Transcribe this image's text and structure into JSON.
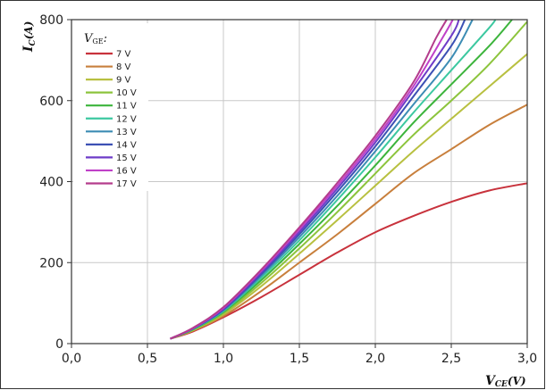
{
  "chart_data": {
    "type": "line",
    "xlabel": {
      "main": "V",
      "sub": "CE",
      "unit": "(V)"
    },
    "ylabel": {
      "main": "I",
      "sub": "C",
      "unit": "(A)"
    },
    "xlim": [
      0,
      3
    ],
    "ylim": [
      0,
      800
    ],
    "x_ticks": [
      "0,0",
      "0,5",
      "1,0",
      "1,5",
      "2,0",
      "2,5",
      "3,0"
    ],
    "x_tick_values": [
      0,
      0.5,
      1,
      1.5,
      2,
      2.5,
      3
    ],
    "y_ticks": [
      "0",
      "200",
      "400",
      "600",
      "800"
    ],
    "y_tick_values": [
      0,
      200,
      400,
      600,
      800
    ],
    "grid": true,
    "legend": {
      "title_main": "V",
      "title_sub": "GE",
      "title_suffix": ":",
      "placement": "top-left"
    },
    "series": [
      {
        "name": "7 V",
        "color": "#c8323c",
        "x": [
          0.65,
          0.8,
          1.0,
          1.25,
          1.5,
          1.75,
          2.0,
          2.25,
          2.5,
          2.75,
          3.0
        ],
        "y": [
          12,
          30,
          65,
          115,
          170,
          225,
          275,
          315,
          350,
          378,
          396
        ]
      },
      {
        "name": "8 V",
        "color": "#c87f3c",
        "x": [
          0.65,
          0.8,
          1.0,
          1.25,
          1.5,
          1.75,
          2.0,
          2.25,
          2.5,
          2.75,
          3.0
        ],
        "y": [
          12,
          32,
          68,
          130,
          200,
          270,
          345,
          420,
          480,
          540,
          590
        ]
      },
      {
        "name": "9 V",
        "color": "#b8c040",
        "x": [
          0.65,
          0.8,
          1.0,
          1.25,
          1.5,
          1.75,
          2.0,
          2.25,
          2.5,
          2.75,
          3.0
        ],
        "y": [
          12,
          33,
          72,
          142,
          222,
          305,
          390,
          475,
          555,
          635,
          715
        ]
      },
      {
        "name": "10 V",
        "color": "#8cc43c",
        "x": [
          0.65,
          0.8,
          1.0,
          1.25,
          1.5,
          1.75,
          2.0,
          2.25,
          2.5,
          2.75,
          3.0
        ],
        "y": [
          12,
          34,
          75,
          150,
          235,
          325,
          420,
          515,
          600,
          690,
          795
        ]
      },
      {
        "name": "11 V",
        "color": "#3cb43c",
        "x": [
          0.65,
          0.8,
          1.0,
          1.25,
          1.5,
          1.75,
          2.0,
          2.25,
          2.5,
          2.75,
          2.9
        ],
        "y": [
          12,
          35,
          78,
          157,
          246,
          340,
          440,
          545,
          640,
          735,
          800
        ]
      },
      {
        "name": "12 V",
        "color": "#3cc8a0",
        "x": [
          0.65,
          0.8,
          1.0,
          1.25,
          1.5,
          1.75,
          2.0,
          2.25,
          2.5,
          2.75,
          2.79
        ],
        "y": [
          12,
          36,
          80,
          163,
          255,
          355,
          460,
          570,
          675,
          780,
          800
        ]
      },
      {
        "name": "13 V",
        "color": "#3c8cb4",
        "x": [
          0.65,
          0.8,
          1.0,
          1.25,
          1.5,
          1.75,
          2.0,
          2.25,
          2.5,
          2.64
        ],
        "y": [
          12,
          37,
          82,
          168,
          263,
          365,
          475,
          590,
          705,
          800
        ]
      },
      {
        "name": "14 V",
        "color": "#3c50b4",
        "x": [
          0.65,
          0.8,
          1.0,
          1.25,
          1.5,
          1.75,
          2.0,
          2.25,
          2.5,
          2.59
        ],
        "y": [
          12,
          37,
          84,
          172,
          270,
          375,
          487,
          610,
          735,
          800
        ]
      },
      {
        "name": "15 V",
        "color": "#6e3cc8",
        "x": [
          0.65,
          0.8,
          1.0,
          1.25,
          1.5,
          1.75,
          2.0,
          2.25,
          2.5,
          2.55
        ],
        "y": [
          12,
          38,
          86,
          176,
          276,
          383,
          497,
          625,
          760,
          800
        ]
      },
      {
        "name": "16 V",
        "color": "#c040c8",
        "x": [
          0.65,
          0.8,
          1.0,
          1.25,
          1.5,
          1.75,
          2.0,
          2.25,
          2.45,
          2.51
        ],
        "y": [
          12,
          38,
          88,
          180,
          282,
          390,
          505,
          635,
          760,
          800
        ]
      },
      {
        "name": "17 V",
        "color": "#b43c8c",
        "x": [
          0.65,
          0.8,
          1.0,
          1.25,
          1.5,
          1.75,
          2.0,
          2.25,
          2.4,
          2.47
        ],
        "y": [
          12,
          39,
          90,
          183,
          287,
          397,
          513,
          645,
          755,
          800
        ]
      }
    ]
  }
}
